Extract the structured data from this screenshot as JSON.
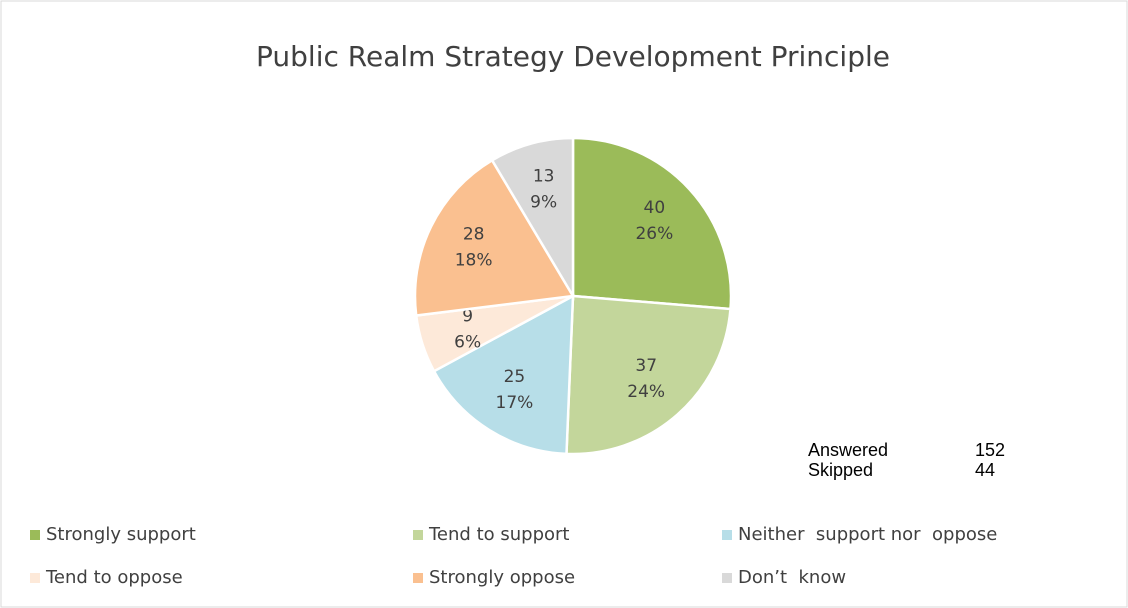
{
  "chart_data": {
    "type": "pie",
    "title": "Public Realm Strategy Development Principle",
    "categories": [
      "Strongly support",
      "Tend to support",
      "Neither  support nor  oppose",
      "Tend to oppose",
      "Strongly oppose",
      "Don’t  know"
    ],
    "values": [
      40,
      37,
      25,
      9,
      28,
      13
    ],
    "percent_labels": [
      "26%",
      "24%",
      "17%",
      "6%",
      "18%",
      "9%"
    ],
    "colors": [
      "#9bbb59",
      "#c3d69b",
      "#b7dee8",
      "#fde9d9",
      "#fac090",
      "#d9d9d9"
    ],
    "legend": "bottom",
    "annotations": [
      {
        "label": "Answered",
        "value": 152
      },
      {
        "label": "Skipped",
        "value": 44
      }
    ]
  }
}
